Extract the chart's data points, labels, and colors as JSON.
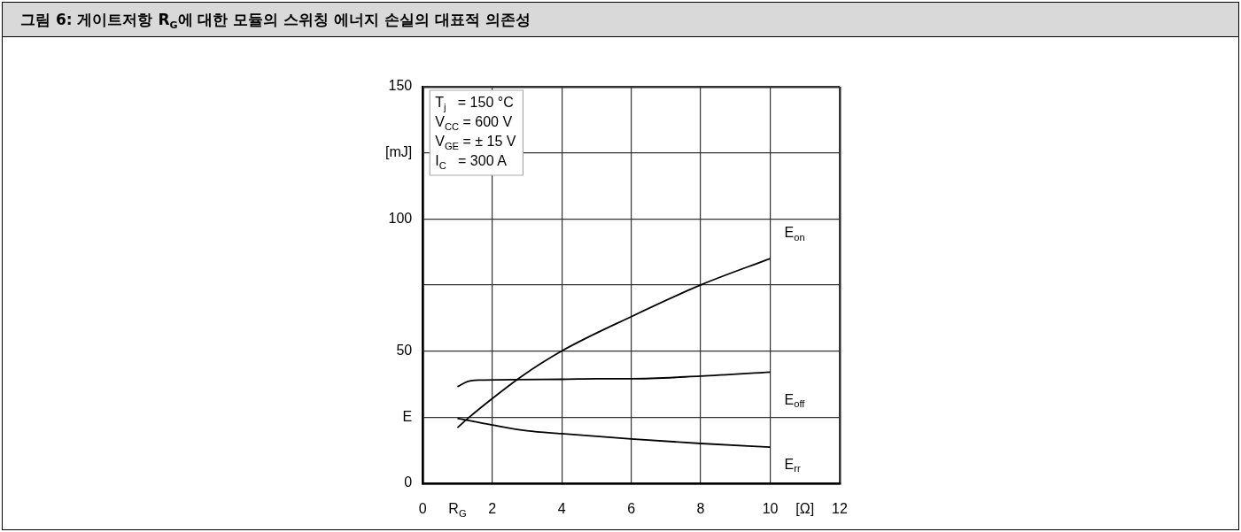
{
  "chart_data": {
    "type": "line",
    "title": "그림 6: 게이트저항 R$_{G}$에 대한 모듈의 스위칭 에너지 손실의 대표적 의존성",
    "xlim": [
      0,
      12
    ],
    "ylim": [
      0,
      150
    ],
    "xticks": [
      0,
      {
        "value": 1,
        "label": "R$_{G}$"
      },
      2,
      4,
      6,
      8,
      10,
      {
        "value": 11,
        "label": "[Ω]"
      },
      12
    ],
    "yticks": [
      0,
      {
        "value": 25,
        "label": "E"
      },
      50,
      {
        "value": 75,
        "label": null
      },
      100,
      {
        "value": 125,
        "label": "[mJ]"
      },
      150
    ],
    "grid": true,
    "marker": "none",
    "line_style": "solid",
    "legend": false,
    "annotations": [
      "T$_{j}$   = 150 °C",
      "V$_{CC}$ = 600 V",
      "V$_{GE}$ = ± 15 V",
      "I$_{C}$   = 300 A"
    ],
    "series": [
      {
        "name": "E$_{on}$",
        "color": "#000000",
        "x": [
          1,
          1.3,
          2,
          2.8,
          4,
          6,
          8,
          10
        ],
        "values": [
          21,
          24.5,
          32,
          40,
          50,
          63,
          75,
          85
        ]
      },
      {
        "name": "E$_{off}$",
        "color": "#000000",
        "x": [
          1,
          1.3,
          1.6,
          4,
          5,
          6,
          8,
          10
        ],
        "values": [
          36.5,
          38.5,
          39,
          39.3,
          39.5,
          39.5,
          40.5,
          42
        ]
      },
      {
        "name": "E$_{rr}$",
        "color": "#000000",
        "x": [
          1,
          2,
          3,
          4,
          6,
          8,
          10
        ],
        "values": [
          24.5,
          22,
          19.8,
          18.7,
          16.7,
          15,
          13.6
        ]
      }
    ]
  }
}
